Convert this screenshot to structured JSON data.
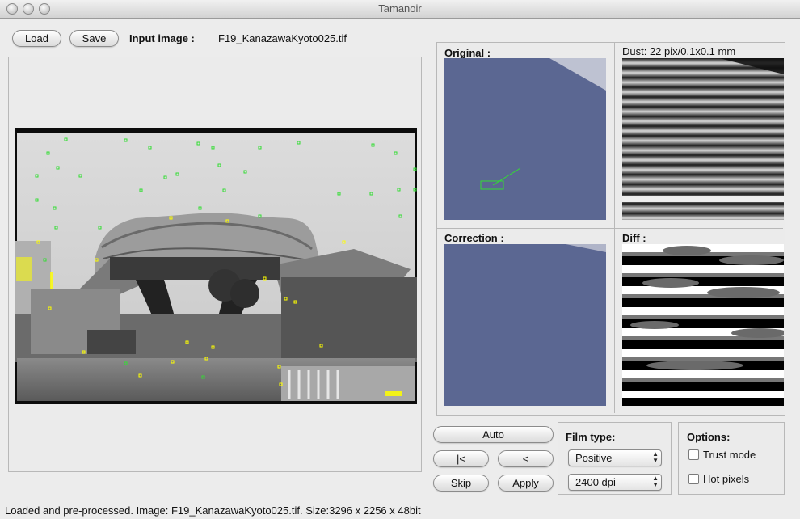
{
  "window": {
    "title": "Tamanoir"
  },
  "toolbar": {
    "load_label": "Load",
    "save_label": "Save",
    "input_label": "Input image :",
    "input_filename": "F19_KanazawaKyoto025.tif"
  },
  "panels": {
    "original_label": "Original :",
    "dust_label": "Dust: 22 pix/0.1x0.1 mm",
    "correction_label": "Correction :",
    "diff_label": "Diff :"
  },
  "controls": {
    "auto_label": "Auto",
    "first_label": "|<",
    "prev_label": "<",
    "skip_label": "Skip",
    "apply_label": "Apply"
  },
  "film": {
    "title": "Film type:",
    "type_value": "Positive",
    "dpi_value": "2400 dpi"
  },
  "options": {
    "title": "Options:",
    "trust_mode_label": "Trust mode",
    "hot_pixels_label": "Hot pixels",
    "trust_mode_checked": false,
    "hot_pixels_checked": false
  },
  "status": {
    "text": "Loaded and pre-processed. Image: F19_KanazawaKyoto025.tif. Size:3296 x 2256 x 48bit"
  },
  "colors": {
    "dust_marker_green": "#33dd33",
    "dust_marker_yellow": "#ffff00",
    "stripe_blue": "#8f9fd6"
  }
}
